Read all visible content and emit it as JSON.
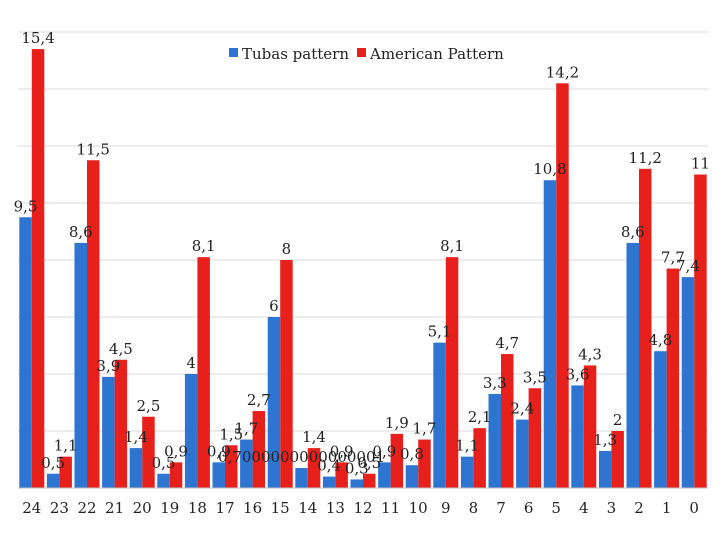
{
  "chart_data": {
    "type": "bar",
    "title": "",
    "xlabel": "",
    "ylabel": "",
    "ylim": [
      0,
      16
    ],
    "grid": true,
    "legend": "top-center",
    "categories": [
      "24",
      "23",
      "22",
      "21",
      "20",
      "19",
      "18",
      "17",
      "16",
      "15",
      "14",
      "13",
      "12",
      "11",
      "10",
      "9",
      "8",
      "7",
      "6",
      "5",
      "4",
      "3",
      "2",
      "1",
      "0"
    ],
    "series": [
      {
        "name": "Tubas pattern",
        "color": "#2E75D2",
        "values": [
          9.5,
          0.5,
          8.6,
          3.9,
          1.4,
          0.5,
          4,
          0.9,
          1.7,
          6,
          0.7,
          0.4,
          0.3,
          0.9,
          0.8,
          5.1,
          1.1,
          3.3,
          2.4,
          10.8,
          3.6,
          1.3,
          8.6,
          4.8,
          7.4
        ],
        "labels": [
          "9,5",
          "0,5",
          "8,6",
          "3,9",
          "1,4",
          "0,5",
          "4",
          "0,9",
          "1,7",
          "6",
          "0,7000000000000001",
          "0,4",
          "0,3",
          "0,9",
          "0,8",
          "5,1",
          "1,1",
          "3,3",
          "2,4",
          "10,8",
          "3,6",
          "1,3",
          "8,6",
          "4,8",
          "7,4"
        ]
      },
      {
        "name": "American Pattern",
        "color": "#E8201C",
        "values": [
          15.4,
          1.1,
          11.5,
          4.5,
          2.5,
          0.9,
          8.1,
          1.5,
          2.7,
          8,
          1.4,
          0.9,
          0.5,
          1.9,
          1.7,
          8.1,
          2.1,
          4.7,
          3.5,
          14.2,
          4.3,
          2,
          11.2,
          7.7,
          11
        ],
        "labels": [
          "15,4",
          "1,1",
          "11,5",
          "4,5",
          "2,5",
          "0,9",
          "8,1",
          "1,5",
          "2,7",
          "8",
          "1,4",
          "0,9",
          "0,5",
          "1,9",
          "1,7",
          "8,1",
          "2,1",
          "4,7",
          "3,5",
          "14,2",
          "4,3",
          "2",
          "11,2",
          "7,7",
          "11"
        ]
      }
    ]
  }
}
